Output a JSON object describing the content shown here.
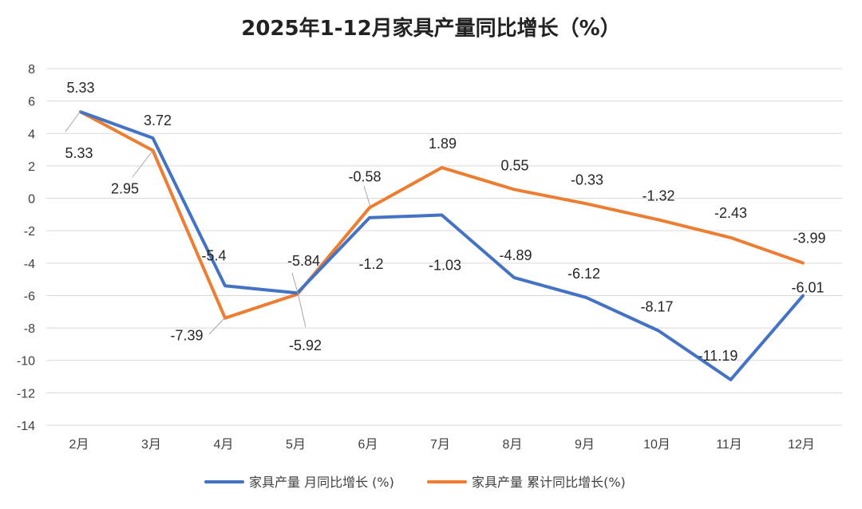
{
  "chart_data": {
    "type": "line",
    "title": "2025年1-12月家具产量同比增长（%）",
    "categories": [
      "2月",
      "3月",
      "4月",
      "5月",
      "6月",
      "7月",
      "8月",
      "9月",
      "10月",
      "11月",
      "12月"
    ],
    "series": [
      {
        "name": "家具产量 月同比增长 (%)",
        "color": "#4472C4",
        "values": [
          5.33,
          3.72,
          -5.4,
          -5.84,
          -1.2,
          -1.03,
          -4.89,
          -6.12,
          -8.17,
          -11.19,
          -6.01
        ],
        "labels": [
          "5.33",
          "3.72",
          "-5.4",
          "-5.84",
          "-1.2",
          "-1.03",
          "-4.89",
          "-6.12",
          "-8.17",
          "-11.19",
          "-6.01"
        ]
      },
      {
        "name": "家具产量 累计同比增长(%)",
        "color": "#ED7D31",
        "values": [
          5.33,
          2.95,
          -7.39,
          -5.92,
          -0.58,
          1.89,
          0.55,
          -0.33,
          -1.32,
          -2.43,
          -3.99
        ],
        "labels": [
          "5.33",
          "2.95",
          "-7.39",
          "-5.92",
          "-0.58",
          "1.89",
          "0.55",
          "-0.33",
          "-1.32",
          "-2.43",
          "-3.99"
        ]
      }
    ],
    "ylim": [
      -14,
      8
    ],
    "yticks": [
      8,
      6,
      4,
      2,
      0,
      -2,
      -4,
      -6,
      -8,
      -10,
      -12,
      -14
    ],
    "grid": true,
    "legend": "bottom"
  }
}
